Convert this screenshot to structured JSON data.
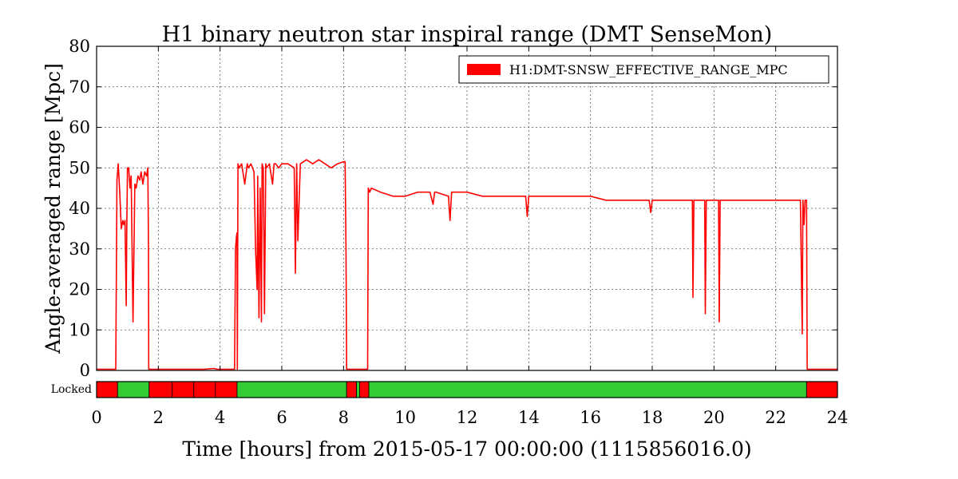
{
  "chart_data": {
    "type": "line",
    "title": "H1 binary neutron star inspiral range (DMT SenseMon)",
    "xlabel": "Time [hours] from 2015-05-17 00:00:00 (1115856016.0)",
    "ylabel": "Angle-averaged range [Mpc]",
    "xlim": [
      0,
      24
    ],
    "ylim": [
      0,
      80
    ],
    "x_ticks": [
      0,
      2,
      4,
      6,
      8,
      10,
      12,
      14,
      16,
      18,
      20,
      22,
      24
    ],
    "y_ticks": [
      0,
      10,
      20,
      30,
      40,
      50,
      60,
      70,
      80
    ],
    "grid": true,
    "legend_position": "top-right",
    "series": [
      {
        "name": "H1:DMT-SNSW_EFFECTIVE_RANGE_MPC",
        "color": "#ff0000",
        "x": [
          0,
          0.62,
          0.66,
          0.7,
          0.75,
          0.8,
          0.85,
          0.88,
          0.92,
          0.96,
          0.98,
          1.0,
          1.04,
          1.08,
          1.12,
          1.18,
          1.24,
          1.28,
          1.3,
          1.34,
          1.4,
          1.44,
          1.5,
          1.56,
          1.62,
          1.66,
          1.68,
          1.69,
          1.7,
          2.5,
          3.5,
          3.8,
          3.9,
          4.4,
          4.47,
          4.5,
          4.53,
          4.55,
          4.56,
          4.58,
          4.62,
          4.7,
          4.8,
          4.88,
          4.92,
          5.0,
          5.1,
          5.15,
          5.2,
          5.22,
          5.26,
          5.3,
          5.34,
          5.36,
          5.4,
          5.44,
          5.48,
          5.5,
          5.6,
          5.7,
          5.75,
          5.8,
          5.9,
          6.0,
          6.2,
          6.4,
          6.44,
          6.48,
          6.52,
          6.6,
          6.8,
          7.0,
          7.2,
          7.4,
          7.6,
          7.8,
          8.0,
          8.05,
          8.08,
          8.1,
          8.7,
          8.78,
          8.8,
          8.85,
          8.9,
          9.2,
          9.6,
          10.0,
          10.4,
          10.8,
          10.9,
          10.95,
          11.0,
          11.4,
          11.45,
          11.5,
          12.0,
          12.5,
          13.0,
          13.5,
          13.9,
          13.95,
          14.0,
          14.5,
          15.0,
          15.5,
          16.0,
          16.5,
          17.0,
          17.5,
          17.9,
          17.95,
          18.0,
          18.5,
          19.0,
          19.3,
          19.32,
          19.35,
          19.6,
          19.7,
          19.72,
          19.75,
          20.1,
          20.15,
          20.17,
          20.2,
          20.5,
          21.0,
          21.5,
          22.0,
          22.5,
          22.8,
          22.86,
          22.88,
          22.92,
          22.95,
          22.97,
          23.0,
          23.02,
          23.05,
          24.0
        ],
        "y": [
          0.3,
          0.3,
          47,
          51,
          44,
          35,
          37,
          36,
          37,
          16,
          37,
          50,
          50,
          45,
          48,
          12,
          46,
          45,
          46,
          48,
          47,
          49,
          46,
          49,
          48,
          50,
          30,
          0.3,
          0.3,
          0.3,
          0.3,
          0.5,
          0.3,
          0.3,
          0.3,
          30,
          33,
          34,
          0.3,
          51,
          50,
          51,
          46,
          51,
          50,
          51,
          49,
          30,
          20,
          48,
          13,
          45,
          12,
          51,
          50,
          14,
          51,
          50,
          51,
          46,
          51,
          51,
          50,
          51,
          51,
          50,
          24,
          51,
          32,
          51,
          52,
          51,
          52,
          51,
          50,
          51,
          51.5,
          51.5,
          30,
          0.3,
          0.3,
          0.3,
          45,
          44,
          45,
          44,
          43,
          43,
          44,
          44,
          41,
          44,
          44,
          43,
          37,
          44,
          44,
          43,
          43,
          43,
          43,
          38,
          43,
          43,
          43,
          43,
          43,
          42,
          42,
          42,
          42,
          39,
          42,
          42,
          42,
          42,
          18,
          42,
          42,
          42,
          14,
          42,
          42,
          42,
          12,
          42,
          42,
          42,
          42,
          42,
          42,
          42,
          9,
          42,
          36,
          42,
          42,
          42,
          0.3,
          0.3,
          0.3
        ]
      }
    ],
    "segments": {
      "label": "Locked",
      "colors": {
        "on": "#33cc33",
        "off": "#ff0000"
      },
      "bars": [
        {
          "start": 0,
          "end": 0.68,
          "state": "off"
        },
        {
          "start": 0.68,
          "end": 1.7,
          "state": "on"
        },
        {
          "start": 1.7,
          "end": 2.45,
          "state": "off"
        },
        {
          "start": 2.45,
          "end": 3.15,
          "state": "off"
        },
        {
          "start": 3.15,
          "end": 3.85,
          "state": "off"
        },
        {
          "start": 3.85,
          "end": 4.55,
          "state": "off"
        },
        {
          "start": 4.55,
          "end": 8.1,
          "state": "on"
        },
        {
          "start": 8.1,
          "end": 8.42,
          "state": "off"
        },
        {
          "start": 8.42,
          "end": 8.52,
          "state": "on"
        },
        {
          "start": 8.52,
          "end": 8.82,
          "state": "off"
        },
        {
          "start": 8.82,
          "end": 23.0,
          "state": "on"
        },
        {
          "start": 23.0,
          "end": 24.0,
          "state": "off"
        }
      ]
    }
  }
}
